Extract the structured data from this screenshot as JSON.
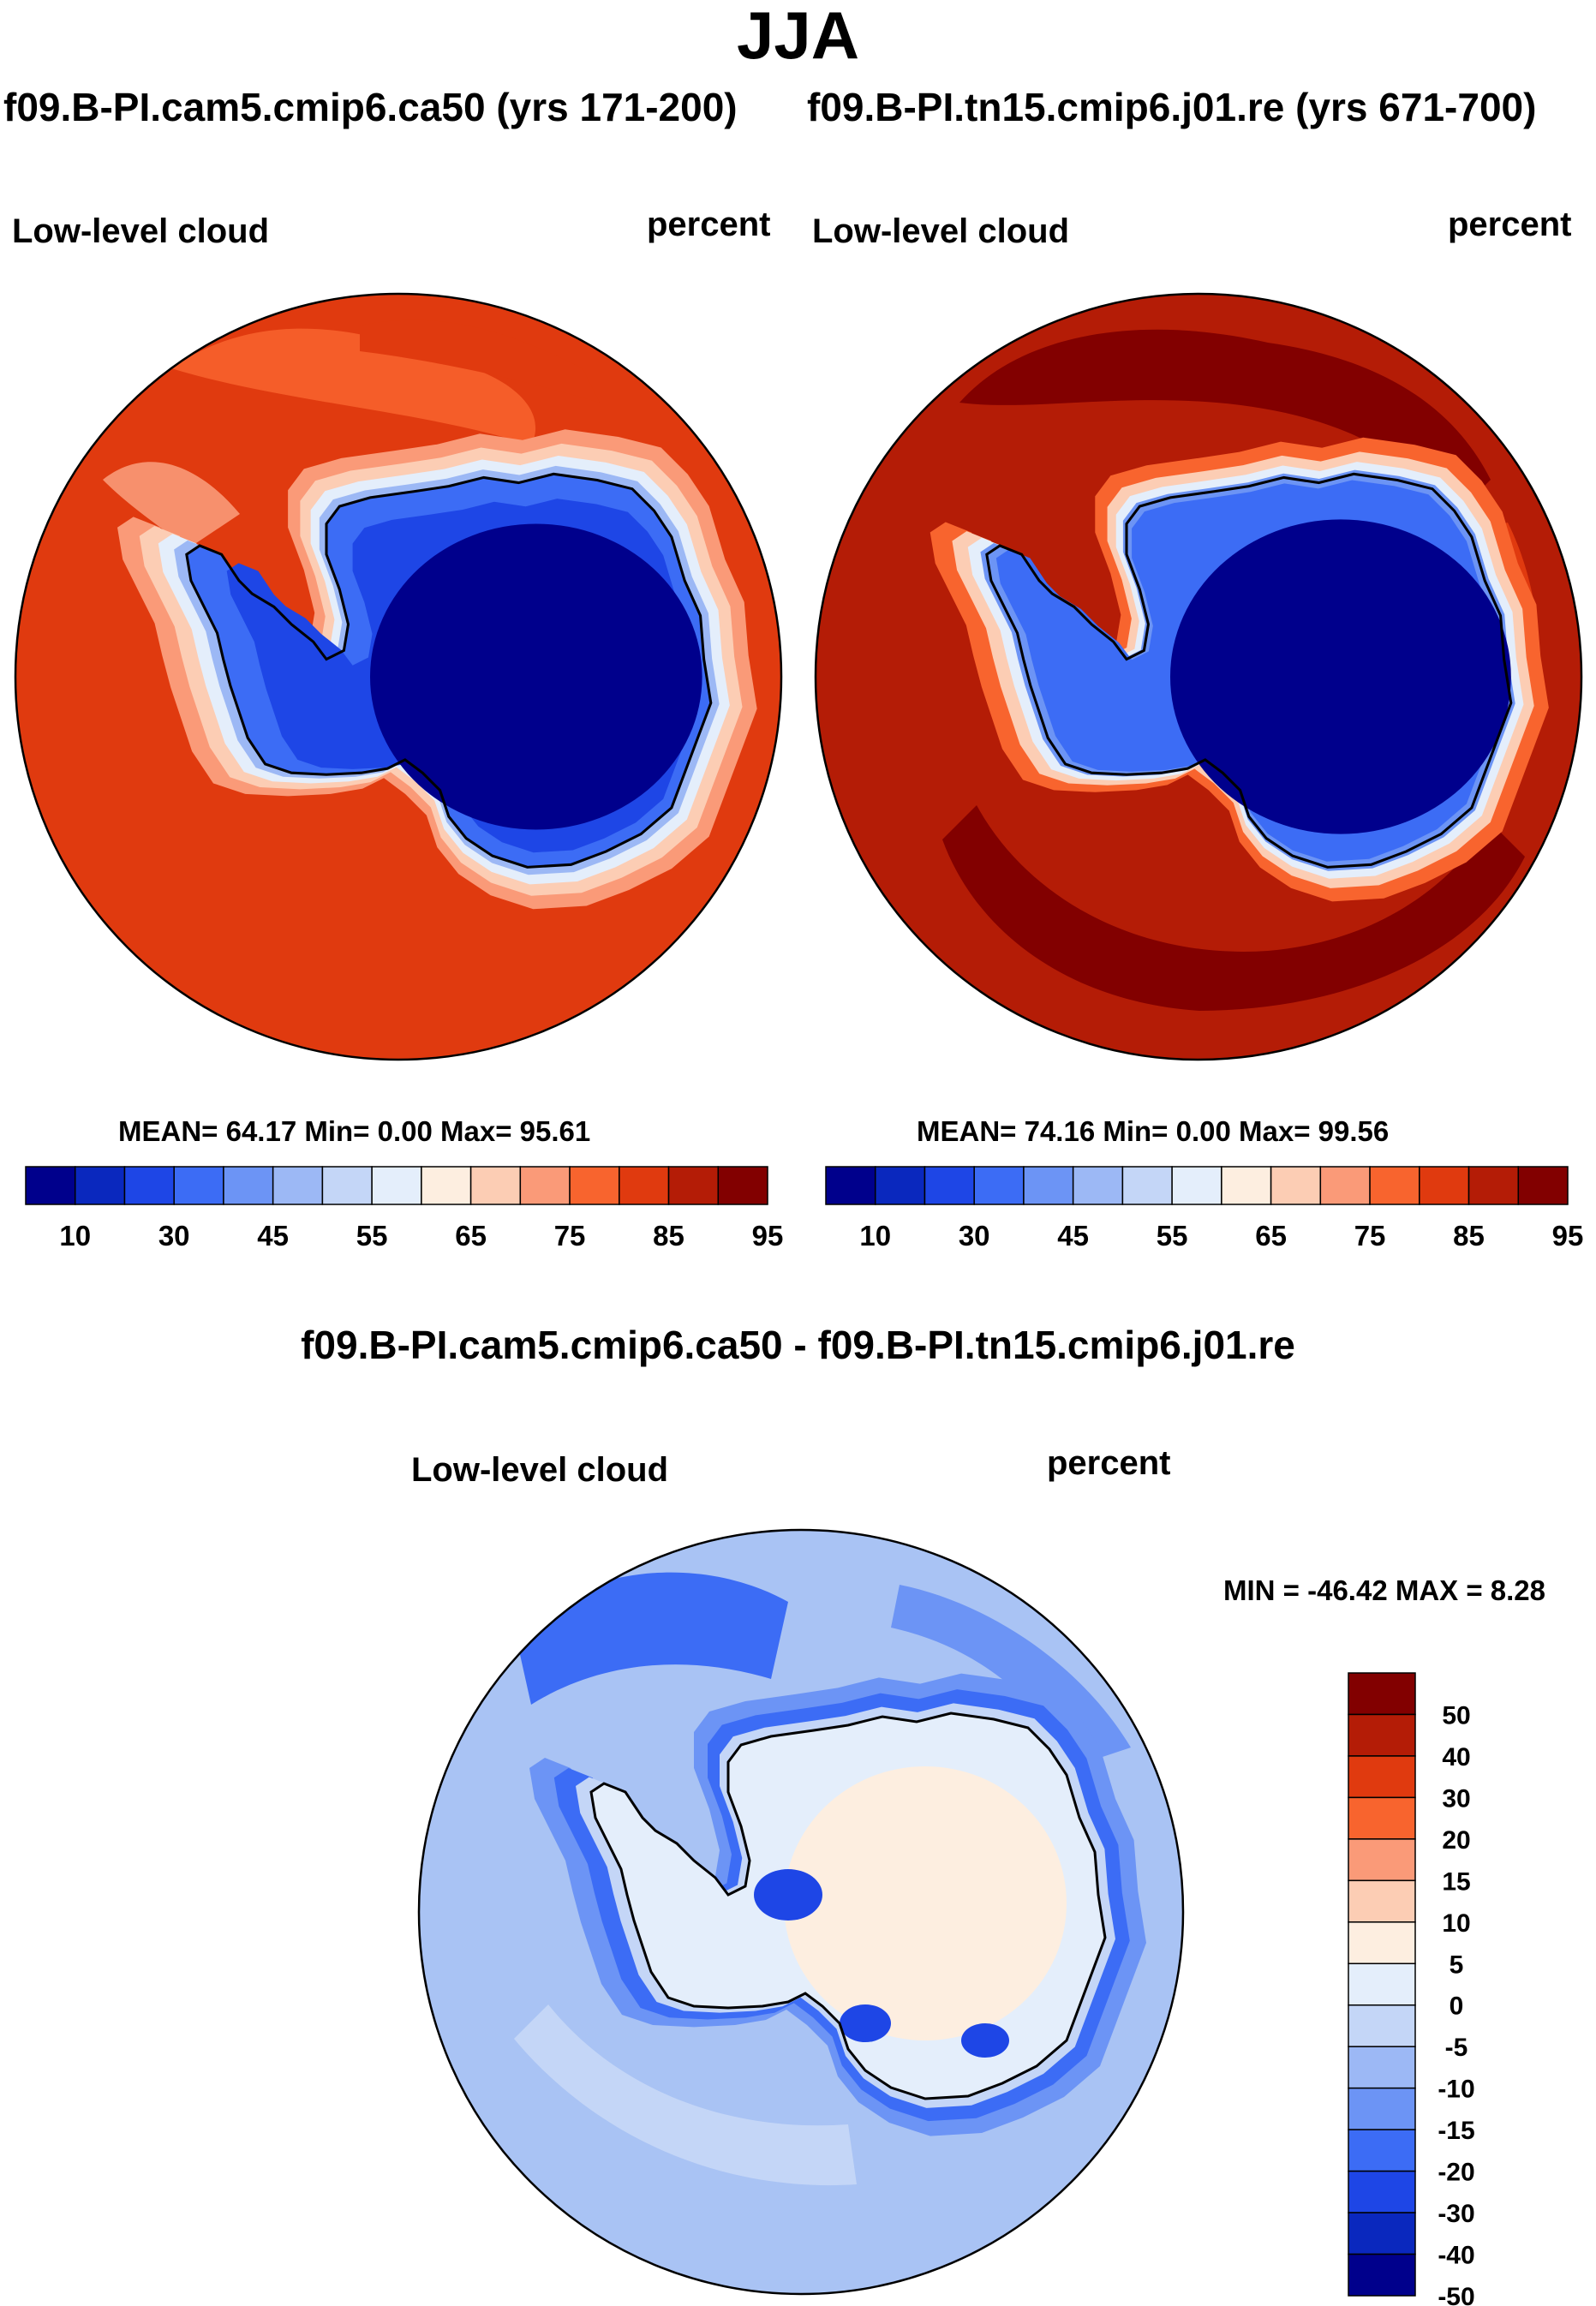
{
  "title": "JJA",
  "panels": [
    {
      "case_title": "f09.B-PI.cam5.cmip6.ca50 (yrs 171-200)",
      "variable": "Low-level cloud",
      "units": "percent",
      "stats": "MEAN=  64.17  Min=   0.00  Max=  95.61",
      "base_color": "#e03a0f"
    },
    {
      "case_title": "f09.B-PI.tn15.cmip6.j01.re (yrs 671-700)",
      "variable": "Low-level cloud",
      "units": "percent",
      "stats": "MEAN=  74.16  Min=   0.00  Max=  99.56",
      "base_color": "#b41c06"
    }
  ],
  "difference": {
    "title": "f09.B-PI.cam5.cmip6.ca50 - f09.B-PI.tn15.cmip6.j01.re",
    "variable": "Low-level cloud",
    "units": "percent",
    "stats": "MIN = -46.42 MAX =   8.28",
    "base_color": "#a9c3f4"
  },
  "colorbar_main": {
    "colors": [
      "#00008c",
      "#0a28be",
      "#1e46e6",
      "#3c6cf5",
      "#6c94f5",
      "#9cb8f5",
      "#c4d6f7",
      "#e4eefb",
      "#fdeee0",
      "#fccdb4",
      "#fa9a78",
      "#f8642e",
      "#e03a0f",
      "#b41c06",
      "#820000"
    ],
    "labels": [
      "10",
      "30",
      "45",
      "55",
      "65",
      "75",
      "85",
      "95"
    ]
  },
  "colorbar_diff": {
    "colors": [
      "#820000",
      "#b41c06",
      "#e03a0f",
      "#f8642e",
      "#fa9a78",
      "#fccdb4",
      "#fdeee0",
      "#e4eefb",
      "#c4d6f7",
      "#9cb8f5",
      "#6c94f5",
      "#3c6cf5",
      "#1e46e6",
      "#0a28be",
      "#00008c"
    ],
    "labels": [
      "50",
      "40",
      "30",
      "20",
      "15",
      "10",
      "5",
      "0",
      "-5",
      "-10",
      "-15",
      "-20",
      "-30",
      "-40",
      "-50"
    ]
  }
}
